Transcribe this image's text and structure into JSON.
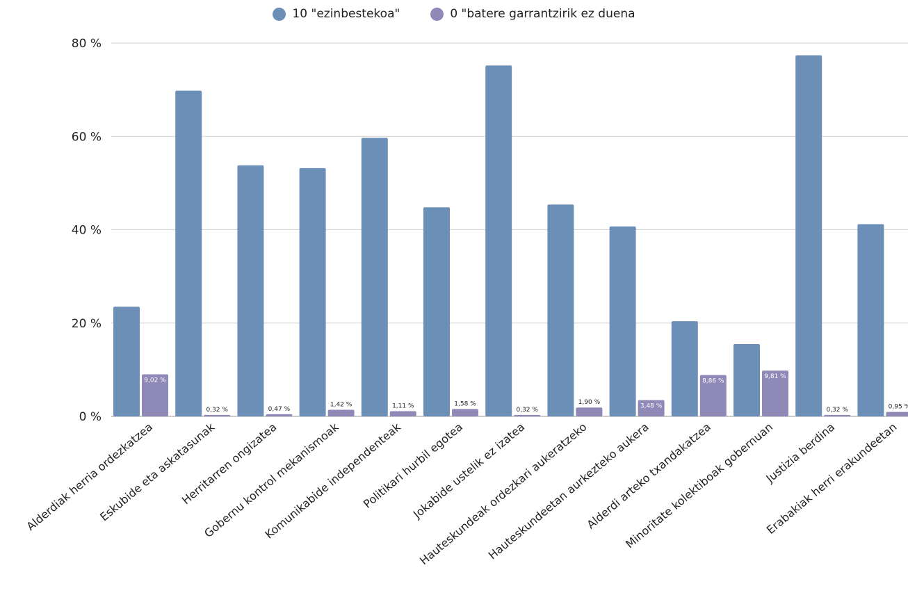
{
  "chart_data": {
    "type": "bar",
    "categories": [
      "Alderdiak herria ordezkatzea",
      "Eskubide eta askatasunak",
      "Herritarren ongizatea",
      "Gobernu kontrol mekanismoak",
      "Komunikabide independenteak",
      "Politikari hurbil egotea",
      "Jokabide ustelik ez izatea",
      "Hauteskundeak ordezkari aukeratzeko",
      "Hauteskundeetan aurkezteko aukera",
      "Alderdi arteko txandakatzea",
      "Minoritate kolektiboak gobernuan",
      "Justizia berdina",
      "Erabakiak herri erakundeetan"
    ],
    "series": [
      {
        "name": "10 \"ezinbestekoa\"",
        "color": "#6c8fb7",
        "values": [
          23.5,
          69.8,
          53.8,
          53.2,
          59.7,
          44.8,
          75.2,
          45.4,
          40.7,
          20.4,
          15.5,
          77.4,
          41.2
        ],
        "labels": null
      },
      {
        "name": "0 \"batere garrantzirik ez duena",
        "color": "#8f89b8",
        "values": [
          9.02,
          0.32,
          0.47,
          1.42,
          1.11,
          1.58,
          0.32,
          1.9,
          3.48,
          8.86,
          9.81,
          0.32,
          0.95
        ],
        "labels": [
          "9,02 %",
          "0,32 %",
          "0,47 %",
          "1,42 %",
          "1,11 %",
          "1,58 %",
          "0,32 %",
          "1,90 %",
          "3,48 %",
          "8,86 %",
          "9,81 %",
          "0,32 %",
          "0,95 %"
        ]
      }
    ],
    "ylim": [
      0,
      80
    ],
    "yticks": [
      0,
      20,
      40,
      60,
      80
    ],
    "ytick_labels": [
      "0 %",
      "20 %",
      "40 %",
      "60 %",
      "80 %"
    ],
    "grid": true,
    "legend_position": "top-center"
  }
}
